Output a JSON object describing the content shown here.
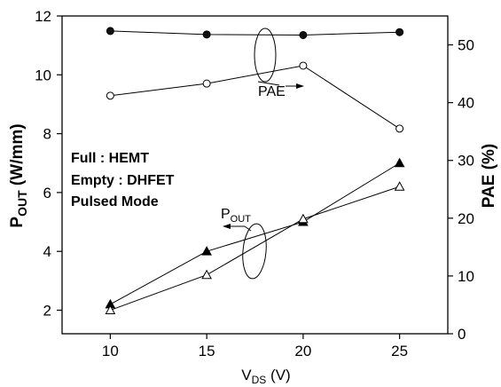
{
  "chart_data": {
    "type": "line",
    "x": [
      10,
      15,
      20,
      25
    ],
    "xlabel": {
      "main": "V",
      "sub": "DS",
      "unit": " (V)"
    },
    "ylabel_left": {
      "main": "P",
      "sub": "OUT",
      "unit": " (W/mm)"
    },
    "ylabel_right": "PAE (%)",
    "xlim": [
      7.5,
      27.5
    ],
    "ylim_left": [
      1.2,
      12
    ],
    "ylim_right": [
      0,
      55
    ],
    "xticks": [
      10,
      15,
      20,
      25
    ],
    "yticks_left": [
      2,
      4,
      6,
      8,
      10,
      12
    ],
    "yticks_right": [
      0,
      10,
      20,
      30,
      40,
      50
    ],
    "grid": false,
    "legend_text": [
      "Full : HEMT",
      "Empty : DHFET",
      "Pulsed Mode"
    ],
    "annotations": {
      "pae": "PAE",
      "pout": {
        "main": "P",
        "sub": "OUT"
      }
    },
    "series": [
      {
        "axis": "right",
        "marker": "circle-filled",
        "values": [
          52.4,
          51.8,
          51.7,
          52.2
        ]
      },
      {
        "axis": "right",
        "marker": "circle-open",
        "values": [
          41.2,
          43.3,
          46.4,
          35.5
        ]
      },
      {
        "axis": "left",
        "marker": "triangle-filled",
        "values": [
          2.2,
          4.0,
          5.0,
          7.0
        ]
      },
      {
        "axis": "left",
        "marker": "triangle-open",
        "values": [
          2.0,
          3.2,
          5.1,
          6.2
        ]
      }
    ]
  }
}
